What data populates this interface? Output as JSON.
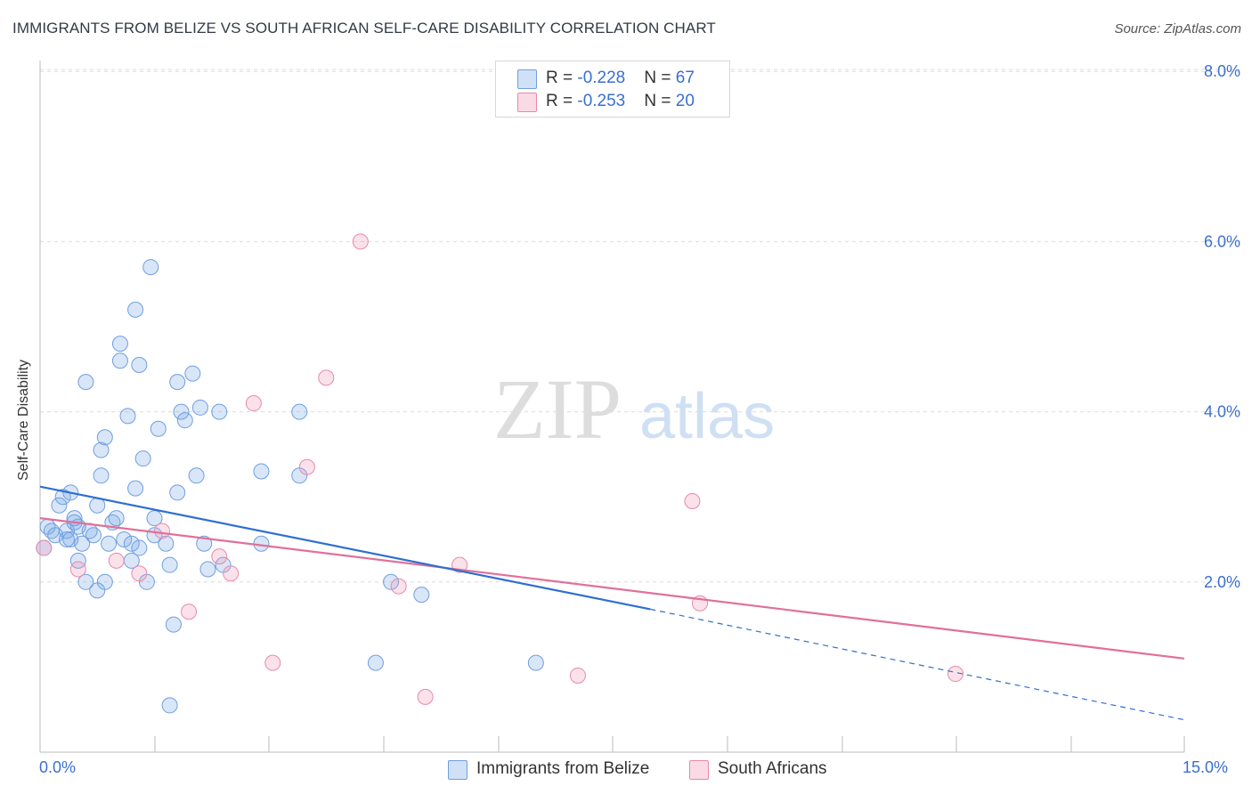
{
  "title": "IMMIGRANTS FROM BELIZE VS SOUTH AFRICAN SELF-CARE DISABILITY CORRELATION CHART",
  "source": "Source: ZipAtlas.com",
  "watermark": {
    "zip": "ZIP",
    "atlas": "atlas"
  },
  "colors": {
    "blue": "#6f9fe0",
    "blue_fill": "rgba(120,165,230,0.28)",
    "blue_line": "#2f6fd0",
    "pink": "#e88aa8",
    "pink_fill": "rgba(240,150,180,0.28)",
    "pink_line": "#e0709a",
    "axis_text": "#3a6fd0",
    "grid": "#dcdcdc"
  },
  "legend": {
    "rows": [
      {
        "r_label": "R = ",
        "r_value": "-0.228",
        "n_label": "N = ",
        "n_value": "67"
      },
      {
        "r_label": "R = ",
        "r_value": "-0.253",
        "n_label": "N = ",
        "n_value": "20"
      }
    ]
  },
  "bottom_legend": [
    "Immigrants from Belize",
    "South Africans"
  ],
  "x_axis": {
    "min_label": "0.0%",
    "max_label": "15.0%"
  },
  "chart_data": {
    "type": "scatter",
    "title": "IMMIGRANTS FROM BELIZE VS SOUTH AFRICAN SELF-CARE DISABILITY CORRELATION CHART",
    "xlabel": "",
    "ylabel": "Self-Care Disability",
    "xlim": [
      0,
      15
    ],
    "ylim": [
      0,
      8.3
    ],
    "y_ticks": [
      2,
      4,
      6,
      8
    ],
    "y_tick_labels": [
      "2.0%",
      "4.0%",
      "6.0%",
      "8.0%"
    ],
    "x_tick_labels": [
      "0.0%",
      "15.0%"
    ],
    "series": [
      {
        "name": "Immigrants from Belize",
        "r": -0.228,
        "n": 67,
        "points": [
          [
            0.05,
            2.4
          ],
          [
            0.1,
            2.65
          ],
          [
            0.15,
            2.6
          ],
          [
            0.2,
            2.55
          ],
          [
            0.25,
            2.9
          ],
          [
            0.3,
            3.0
          ],
          [
            0.35,
            2.6
          ],
          [
            0.35,
            2.5
          ],
          [
            0.4,
            3.05
          ],
          [
            0.45,
            2.7
          ],
          [
            0.5,
            2.65
          ],
          [
            0.55,
            2.45
          ],
          [
            0.4,
            2.5
          ],
          [
            0.45,
            2.75
          ],
          [
            0.5,
            2.25
          ],
          [
            0.6,
            4.35
          ],
          [
            0.6,
            2.0
          ],
          [
            0.7,
            2.55
          ],
          [
            0.75,
            2.9
          ],
          [
            0.8,
            3.55
          ],
          [
            0.8,
            3.25
          ],
          [
            0.65,
            2.6
          ],
          [
            0.85,
            3.7
          ],
          [
            0.9,
            2.45
          ],
          [
            0.95,
            2.7
          ],
          [
            1.0,
            2.75
          ],
          [
            1.05,
            4.8
          ],
          [
            1.05,
            4.6
          ],
          [
            1.1,
            2.5
          ],
          [
            1.15,
            3.95
          ],
          [
            0.75,
            1.9
          ],
          [
            1.2,
            2.45
          ],
          [
            1.25,
            3.1
          ],
          [
            1.25,
            5.2
          ],
          [
            1.3,
            2.4
          ],
          [
            1.35,
            3.45
          ],
          [
            1.4,
            2.0
          ],
          [
            1.45,
            5.7
          ],
          [
            1.5,
            2.55
          ],
          [
            1.5,
            2.75
          ],
          [
            1.55,
            3.8
          ],
          [
            1.65,
            2.45
          ],
          [
            1.3,
            4.55
          ],
          [
            1.7,
            2.2
          ],
          [
            1.75,
            1.5
          ],
          [
            1.8,
            4.35
          ],
          [
            1.8,
            3.05
          ],
          [
            1.85,
            4.0
          ],
          [
            1.9,
            3.9
          ],
          [
            2.0,
            4.45
          ],
          [
            2.05,
            3.25
          ],
          [
            2.1,
            4.05
          ],
          [
            2.2,
            2.15
          ],
          [
            2.4,
            2.2
          ],
          [
            2.35,
            4.0
          ],
          [
            2.15,
            2.45
          ],
          [
            2.9,
            2.45
          ],
          [
            2.9,
            3.3
          ],
          [
            3.4,
            4.0
          ],
          [
            3.4,
            3.25
          ],
          [
            4.6,
            2.0
          ],
          [
            5.0,
            1.85
          ],
          [
            4.4,
            1.05
          ],
          [
            6.5,
            1.05
          ],
          [
            1.7,
            0.55
          ],
          [
            1.2,
            2.25
          ],
          [
            0.85,
            2.0
          ]
        ]
      },
      {
        "name": "South Africans",
        "r": -0.253,
        "n": 20,
        "points": [
          [
            0.05,
            2.4
          ],
          [
            0.5,
            2.15
          ],
          [
            1.0,
            2.25
          ],
          [
            1.3,
            2.1
          ],
          [
            1.6,
            2.6
          ],
          [
            1.95,
            1.65
          ],
          [
            2.35,
            2.3
          ],
          [
            2.5,
            2.1
          ],
          [
            2.8,
            4.1
          ],
          [
            3.5,
            3.35
          ],
          [
            3.75,
            4.4
          ],
          [
            3.05,
            1.05
          ],
          [
            4.2,
            6.0
          ],
          [
            4.7,
            1.95
          ],
          [
            5.05,
            0.65
          ],
          [
            5.5,
            2.2
          ],
          [
            7.05,
            0.9
          ],
          [
            8.55,
            2.95
          ],
          [
            8.65,
            1.75
          ],
          [
            12.0,
            0.92
          ]
        ]
      }
    ],
    "trend_lines": [
      {
        "series": "Immigrants from Belize",
        "x0": 0,
        "y0": 3.12,
        "x1": 8.0,
        "y1": 1.68,
        "dashed_to_x": 15,
        "dashed_to_y": 0.38
      },
      {
        "series": "South Africans",
        "x0": 0,
        "y0": 2.75,
        "x1": 15,
        "y1": 1.1
      }
    ]
  }
}
